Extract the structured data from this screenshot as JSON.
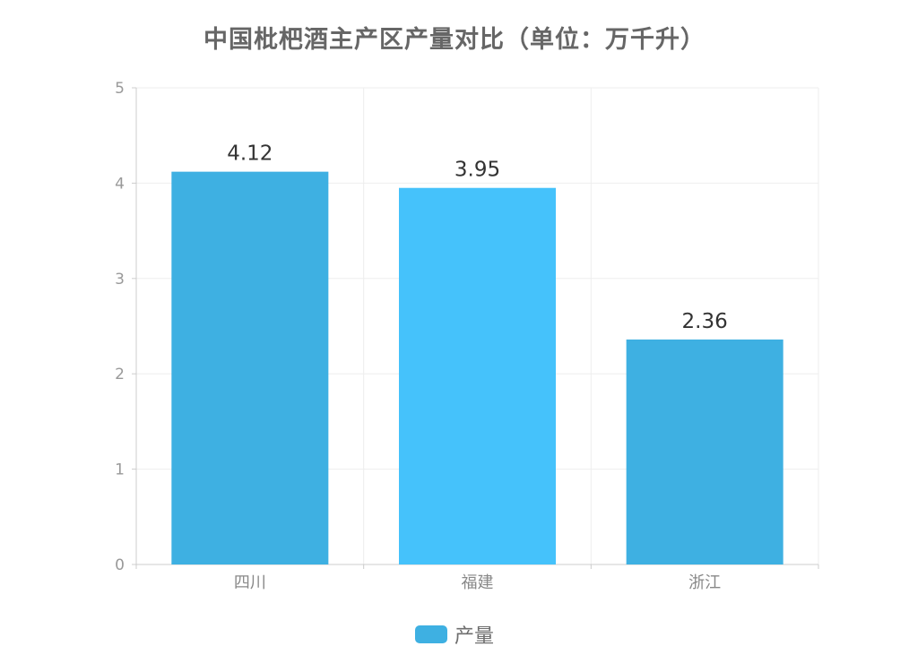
{
  "chart_data": {
    "type": "bar",
    "title": "中国枇杷酒主产区产量对比（单位：万千升）",
    "categories": [
      "四川",
      "福建",
      "浙江"
    ],
    "series": [
      {
        "name": "产量",
        "values": [
          4.12,
          3.95,
          2.36
        ]
      }
    ],
    "bar_colors": [
      "#3eb0e2",
      "#45c2fb",
      "#3eb0e2"
    ],
    "legend_color": "#3eb0e2",
    "ylim": [
      0,
      5
    ],
    "yticks": [
      0,
      1,
      2,
      3,
      4,
      5
    ],
    "xlabel": "",
    "ylabel": "",
    "grid": true,
    "legend_position": "bottom-center"
  }
}
